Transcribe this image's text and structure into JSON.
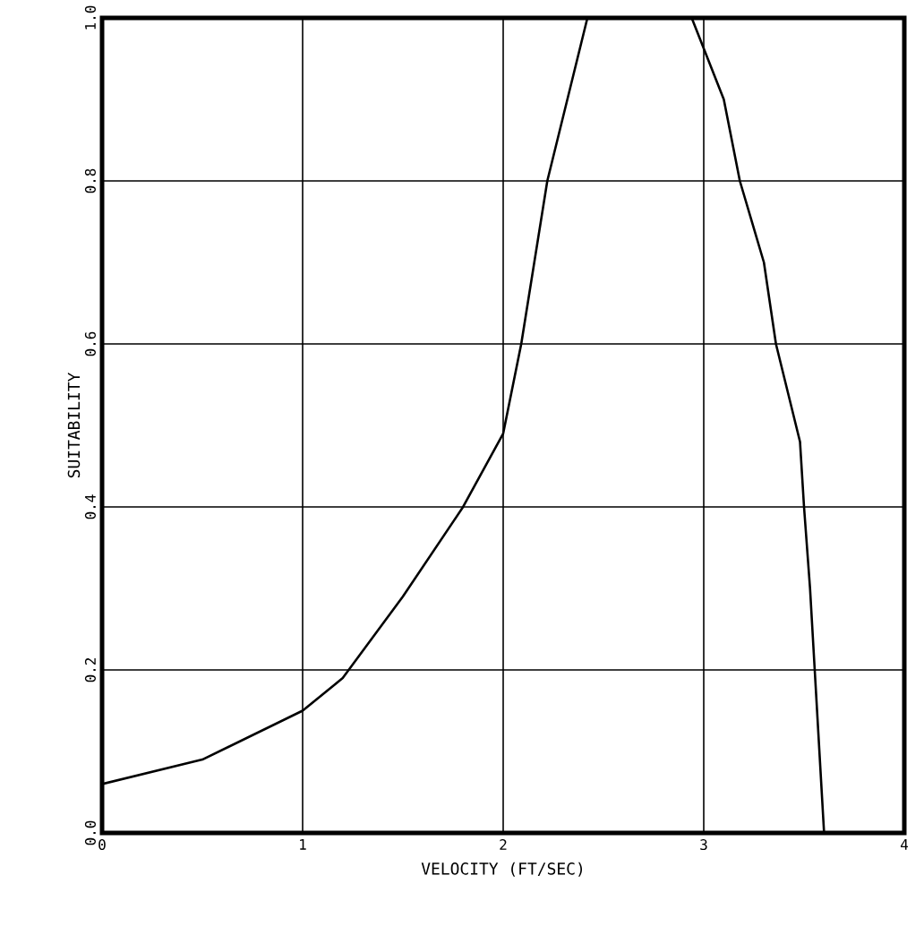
{
  "chart_data": {
    "type": "line",
    "xlabel": "VELOCITY (FT/SEC)",
    "ylabel": "SUITABILITY",
    "x": [
      0,
      0.5,
      1,
      1.2,
      1.5,
      1.8,
      2,
      2.09,
      2.22,
      2.32,
      2.42,
      2.94,
      3.1,
      3.18,
      3.3,
      3.36,
      3.48,
      3.5,
      3.53,
      3.6
    ],
    "values": [
      0.06,
      0.09,
      0.15,
      0.19,
      0.29,
      0.4,
      0.49,
      0.6,
      0.8,
      0.9,
      1,
      1,
      0.9,
      0.8,
      0.7,
      0.6,
      0.48,
      0.4,
      0.3,
      0
    ],
    "color": "#000000",
    "xlim": [
      0,
      4
    ],
    "ylim": [
      0,
      1
    ],
    "xticks": [
      0,
      1,
      2,
      3,
      4
    ],
    "yticks": [
      {
        "value": 0,
        "label": "0.0"
      },
      {
        "value": 0.2,
        "label": "0.2"
      },
      {
        "value": 0.4,
        "label": "0.4"
      },
      {
        "value": 0.6,
        "label": "0.6"
      },
      {
        "value": 0.8,
        "label": "0.8"
      },
      {
        "value": 1,
        "label": "1.0"
      }
    ],
    "grid": true,
    "marker": "none",
    "line_style": "solid"
  }
}
